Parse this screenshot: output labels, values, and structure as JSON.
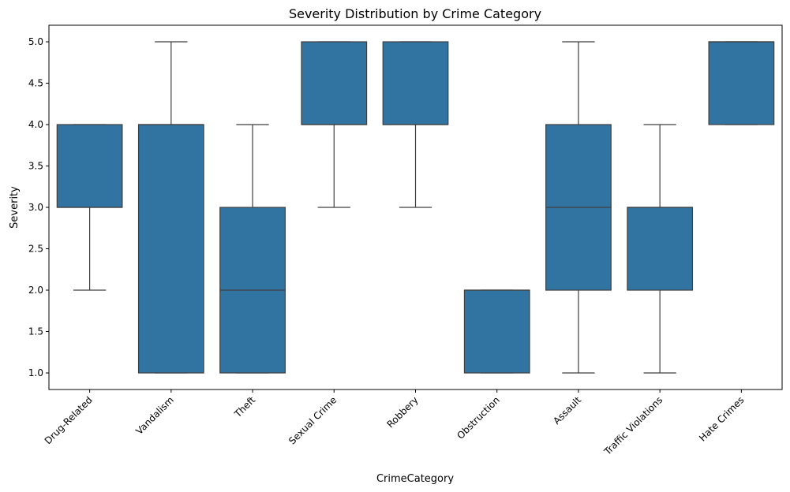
{
  "chart_data": {
    "type": "box",
    "title": "Severity Distribution by Crime Category",
    "xlabel": "CrimeCategory",
    "ylabel": "Severity",
    "ylim": [
      0.8,
      5.2
    ],
    "yticks": [
      1.0,
      1.5,
      2.0,
      2.5,
      3.0,
      3.5,
      4.0,
      4.5,
      5.0
    ],
    "ytick_labels": [
      "1.0",
      "1.5",
      "2.0",
      "2.5",
      "3.0",
      "3.5",
      "4.0",
      "4.5",
      "5.0"
    ],
    "grid": false,
    "box_color": "#3274a1",
    "categories": [
      "Drug-Related",
      "Vandalism",
      "Theft",
      "Sexual Crime",
      "Robbery",
      "Obstruction",
      "Assault",
      "Traffic Violations",
      "Hate Crimes"
    ],
    "boxes": [
      {
        "whisker_low": 2,
        "q1": 3,
        "median": 3,
        "q3": 4,
        "whisker_high": 4
      },
      {
        "whisker_low": 1,
        "q1": 1,
        "median": 4,
        "q3": 4,
        "whisker_high": 5
      },
      {
        "whisker_low": 1,
        "q1": 1,
        "median": 2,
        "q3": 3,
        "whisker_high": 4
      },
      {
        "whisker_low": 3,
        "q1": 4,
        "median": 4,
        "q3": 5,
        "whisker_high": 5
      },
      {
        "whisker_low": 3,
        "q1": 4,
        "median": 4,
        "q3": 5,
        "whisker_high": 5
      },
      {
        "whisker_low": 1,
        "q1": 1,
        "median": 2,
        "q3": 2,
        "whisker_high": 2
      },
      {
        "whisker_low": 1,
        "q1": 2,
        "median": 3,
        "q3": 4,
        "whisker_high": 5
      },
      {
        "whisker_low": 1,
        "q1": 2,
        "median": 3,
        "q3": 3,
        "whisker_high": 4
      },
      {
        "whisker_low": 4,
        "q1": 4,
        "median": 5,
        "q3": 5,
        "whisker_high": 5
      }
    ]
  }
}
